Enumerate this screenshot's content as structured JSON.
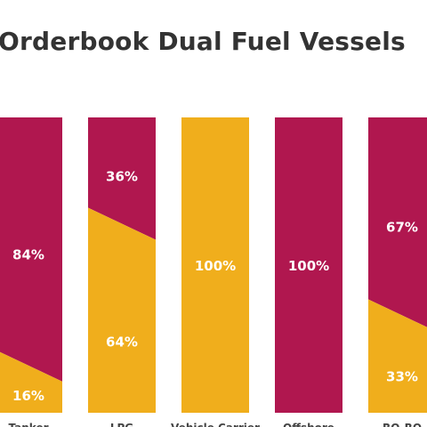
{
  "chart_data": {
    "type": "bar",
    "title": "Orderbook Dual Fuel Vessels",
    "categories": [
      "Tanker",
      "LPG",
      "Vehicle Carrier",
      "Offshore",
      "RO-RO"
    ],
    "series": [
      {
        "name": "",
        "color": "#b0174f",
        "values": [
          84,
          36,
          0,
          100,
          67
        ]
      },
      {
        "name": "",
        "color": "#f0ae1c",
        "values": [
          16,
          64,
          100,
          0,
          33
        ]
      }
    ],
    "unit": "%",
    "ylim": [
      0,
      100
    ],
    "stacked": true,
    "grid": false
  }
}
